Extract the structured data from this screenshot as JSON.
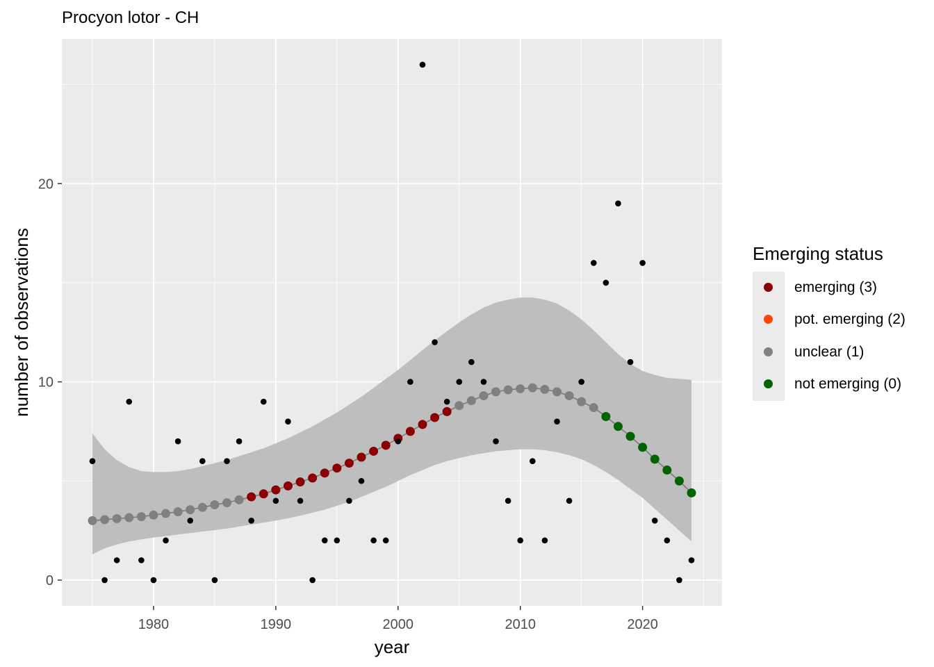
{
  "chart_data": {
    "type": "scatter",
    "title": "Procyon lotor - CH",
    "xlabel": "year",
    "ylabel": "number of observations",
    "xlim": [
      1972.5,
      2026.5
    ],
    "ylim": [
      -1.3,
      27.3
    ],
    "x_ticks": [
      1980,
      1990,
      2000,
      2010,
      2020
    ],
    "y_ticks": [
      0,
      10,
      20
    ],
    "grid": true,
    "legend_position": "right",
    "legend_title": "Emerging status",
    "legend": [
      {
        "label": "emerging (3)",
        "color": "#8b0000"
      },
      {
        "label": "pot. emerging (2)",
        "color": "#ff4500"
      },
      {
        "label": "unclear (1)",
        "color": "#808080"
      },
      {
        "label": "not emerging (0)",
        "color": "#006400"
      }
    ],
    "observations": {
      "name": "observations",
      "color": "#000000",
      "x": [
        1975,
        1976,
        1977,
        1978,
        1979,
        1980,
        1981,
        1982,
        1983,
        1984,
        1985,
        1986,
        1987,
        1988,
        1989,
        1990,
        1991,
        1992,
        1993,
        1994,
        1995,
        1996,
        1997,
        1998,
        1999,
        2000,
        2001,
        2002,
        2003,
        2004,
        2005,
        2006,
        2007,
        2008,
        2009,
        2010,
        2011,
        2012,
        2013,
        2014,
        2015,
        2016,
        2017,
        2018,
        2019,
        2020,
        2021,
        2022,
        2023,
        2024
      ],
      "y": [
        6,
        0,
        1,
        9,
        1,
        0,
        2,
        7,
        3,
        6,
        0,
        6,
        7,
        3,
        9,
        4,
        8,
        4,
        0,
        2,
        2,
        4,
        5,
        2,
        2,
        7,
        10,
        26,
        12,
        9,
        10,
        11,
        10,
        7,
        4,
        2,
        6,
        2,
        8,
        4,
        10,
        16,
        15,
        19,
        11,
        16,
        3,
        2,
        0,
        1
      ]
    },
    "fit": {
      "name": "fitted trend",
      "x": [
        1975,
        1976,
        1977,
        1978,
        1979,
        1980,
        1981,
        1982,
        1983,
        1984,
        1985,
        1986,
        1987,
        1988,
        1989,
        1990,
        1991,
        1992,
        1993,
        1994,
        1995,
        1996,
        1997,
        1998,
        1999,
        2000,
        2001,
        2002,
        2003,
        2004,
        2005,
        2006,
        2007,
        2008,
        2009,
        2010,
        2011,
        2012,
        2013,
        2014,
        2015,
        2016,
        2017,
        2018,
        2019,
        2020,
        2021,
        2022,
        2023,
        2024
      ],
      "y": [
        3.0,
        3.05,
        3.1,
        3.15,
        3.2,
        3.28,
        3.36,
        3.45,
        3.55,
        3.67,
        3.8,
        3.9,
        4.05,
        4.2,
        4.35,
        4.55,
        4.75,
        4.95,
        5.15,
        5.4,
        5.65,
        5.9,
        6.2,
        6.5,
        6.8,
        7.15,
        7.5,
        7.85,
        8.2,
        8.5,
        8.8,
        9.05,
        9.3,
        9.5,
        9.6,
        9.65,
        9.7,
        9.62,
        9.5,
        9.3,
        9.0,
        8.7,
        8.25,
        7.75,
        7.25,
        6.7,
        6.1,
        5.55,
        5.0,
        4.4
      ],
      "lower": [
        1.3,
        1.6,
        1.8,
        1.95,
        2.05,
        2.15,
        2.22,
        2.3,
        2.37,
        2.45,
        2.52,
        2.6,
        2.7,
        2.8,
        2.9,
        3.0,
        3.12,
        3.25,
        3.4,
        3.55,
        3.75,
        3.95,
        4.2,
        4.45,
        4.7,
        5.0,
        5.3,
        5.55,
        5.8,
        6.0,
        6.15,
        6.3,
        6.4,
        6.5,
        6.55,
        6.6,
        6.6,
        6.55,
        6.45,
        6.3,
        6.1,
        5.8,
        5.45,
        5.05,
        4.6,
        4.15,
        3.6,
        3.05,
        2.5,
        1.95
      ],
      "upper": [
        7.4,
        6.6,
        6.05,
        5.7,
        5.5,
        5.45,
        5.45,
        5.5,
        5.6,
        5.75,
        5.9,
        6.05,
        6.25,
        6.45,
        6.65,
        6.9,
        7.15,
        7.45,
        7.75,
        8.1,
        8.45,
        8.85,
        9.25,
        9.7,
        10.15,
        10.6,
        11.1,
        11.6,
        12.1,
        12.55,
        13.0,
        13.4,
        13.75,
        14.0,
        14.15,
        14.25,
        14.25,
        14.15,
        13.95,
        13.6,
        13.15,
        12.6,
        12.0,
        11.4,
        10.9,
        10.55,
        10.35,
        10.2,
        10.15,
        10.1
      ],
      "status": [
        "unclear (1)",
        "unclear (1)",
        "unclear (1)",
        "unclear (1)",
        "unclear (1)",
        "unclear (1)",
        "unclear (1)",
        "unclear (1)",
        "unclear (1)",
        "unclear (1)",
        "unclear (1)",
        "unclear (1)",
        "unclear (1)",
        "emerging (3)",
        "emerging (3)",
        "emerging (3)",
        "emerging (3)",
        "emerging (3)",
        "emerging (3)",
        "emerging (3)",
        "emerging (3)",
        "emerging (3)",
        "emerging (3)",
        "emerging (3)",
        "emerging (3)",
        "emerging (3)",
        "emerging (3)",
        "emerging (3)",
        "emerging (3)",
        "emerging (3)",
        "unclear (1)",
        "unclear (1)",
        "unclear (1)",
        "unclear (1)",
        "unclear (1)",
        "unclear (1)",
        "unclear (1)",
        "unclear (1)",
        "unclear (1)",
        "unclear (1)",
        "unclear (1)",
        "unclear (1)",
        "not emerging (0)",
        "not emerging (0)",
        "not emerging (0)",
        "not emerging (0)",
        "not emerging (0)",
        "not emerging (0)",
        "not emerging (0)",
        "not emerging (0)"
      ]
    }
  },
  "colors": {
    "panel_background": "#ebebeb",
    "grid": "#ffffff",
    "ribbon": "#bebebe",
    "fit_line": "#808080",
    "axis_text": "#4d4d4d"
  }
}
